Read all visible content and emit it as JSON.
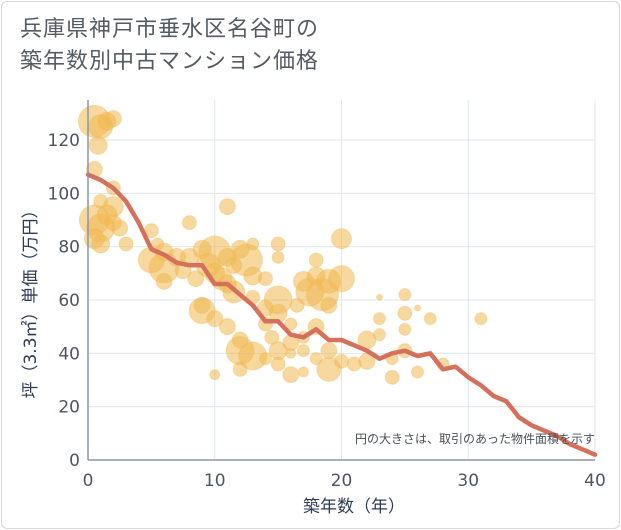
{
  "chart_data": {
    "type": "scatter",
    "title_lines": [
      "兵庫県神戸市垂水区名谷町の",
      "築年数別中古マンション価格"
    ],
    "xlabel": "築年数（年）",
    "ylabel": "坪（3.3㎡）単価（万円）",
    "note": "円の大きさは、取引のあった物件面積を示す",
    "xlim": [
      0,
      40
    ],
    "ylim": [
      0,
      135
    ],
    "x_ticks": [
      0,
      10,
      20,
      30,
      40
    ],
    "y_ticks": [
      0,
      20,
      40,
      60,
      80,
      100,
      120
    ],
    "grid": true,
    "colors": {
      "bubble": "#f0b850",
      "line": "#d4705c",
      "grid": "#dfe6ee",
      "axis": "#8c96a6"
    },
    "points": [
      {
        "x": 0.5,
        "y": 127,
        "s": 16
      },
      {
        "x": 1,
        "y": 125,
        "s": 12
      },
      {
        "x": 1.5,
        "y": 127,
        "s": 9
      },
      {
        "x": 2,
        "y": 128,
        "s": 8
      },
      {
        "x": 0.8,
        "y": 118,
        "s": 9
      },
      {
        "x": 0.5,
        "y": 109,
        "s": 8
      },
      {
        "x": 2,
        "y": 102,
        "s": 7
      },
      {
        "x": 1,
        "y": 97,
        "s": 7
      },
      {
        "x": 2,
        "y": 95,
        "s": 10
      },
      {
        "x": 0.5,
        "y": 90,
        "s": 15
      },
      {
        "x": 1,
        "y": 87,
        "s": 14
      },
      {
        "x": 1.5,
        "y": 92,
        "s": 10
      },
      {
        "x": 2,
        "y": 89,
        "s": 8
      },
      {
        "x": 0.5,
        "y": 83,
        "s": 10
      },
      {
        "x": 1,
        "y": 81,
        "s": 9
      },
      {
        "x": 2.5,
        "y": 87,
        "s": 8
      },
      {
        "x": 3,
        "y": 81,
        "s": 7
      },
      {
        "x": 5,
        "y": 86,
        "s": 7
      },
      {
        "x": 5.5,
        "y": 81,
        "s": 6
      },
      {
        "x": 6,
        "y": 78,
        "s": 9
      },
      {
        "x": 5,
        "y": 75,
        "s": 13
      },
      {
        "x": 6,
        "y": 72,
        "s": 15
      },
      {
        "x": 7,
        "y": 76,
        "s": 9
      },
      {
        "x": 6,
        "y": 67,
        "s": 8
      },
      {
        "x": 7.5,
        "y": 71,
        "s": 8
      },
      {
        "x": 8,
        "y": 89,
        "s": 7
      },
      {
        "x": 8,
        "y": 76,
        "s": 9
      },
      {
        "x": 8.5,
        "y": 68,
        "s": 8
      },
      {
        "x": 9,
        "y": 79,
        "s": 9
      },
      {
        "x": 9.5,
        "y": 73,
        "s": 12
      },
      {
        "x": 10,
        "y": 78,
        "s": 16
      },
      {
        "x": 10,
        "y": 70,
        "s": 10
      },
      {
        "x": 10.5,
        "y": 68,
        "s": 11
      },
      {
        "x": 11,
        "y": 95,
        "s": 8
      },
      {
        "x": 11,
        "y": 76,
        "s": 9
      },
      {
        "x": 11.5,
        "y": 73,
        "s": 8
      },
      {
        "x": 11,
        "y": 66,
        "s": 9
      },
      {
        "x": 11.5,
        "y": 63,
        "s": 11
      },
      {
        "x": 9,
        "y": 58,
        "s": 8
      },
      {
        "x": 9,
        "y": 56,
        "s": 13
      },
      {
        "x": 10,
        "y": 53,
        "s": 8
      },
      {
        "x": 11,
        "y": 50,
        "s": 8
      },
      {
        "x": 10,
        "y": 32,
        "s": 5
      },
      {
        "x": 12,
        "y": 79,
        "s": 9
      },
      {
        "x": 12.5,
        "y": 75,
        "s": 16
      },
      {
        "x": 13,
        "y": 81,
        "s": 6
      },
      {
        "x": 13,
        "y": 69,
        "s": 9
      },
      {
        "x": 13,
        "y": 61,
        "s": 7
      },
      {
        "x": 14,
        "y": 68,
        "s": 7
      },
      {
        "x": 14,
        "y": 57,
        "s": 8
      },
      {
        "x": 15,
        "y": 81,
        "s": 7
      },
      {
        "x": 15,
        "y": 76,
        "s": 6
      },
      {
        "x": 14,
        "y": 51,
        "s": 7
      },
      {
        "x": 14.5,
        "y": 46,
        "s": 7
      },
      {
        "x": 15,
        "y": 60,
        "s": 14
      },
      {
        "x": 15,
        "y": 55,
        "s": 9
      },
      {
        "x": 16,
        "y": 51,
        "s": 6
      },
      {
        "x": 16.5,
        "y": 58,
        "s": 7
      },
      {
        "x": 17,
        "y": 67,
        "s": 10
      },
      {
        "x": 17.5,
        "y": 63,
        "s": 14
      },
      {
        "x": 18,
        "y": 69,
        "s": 9
      },
      {
        "x": 18,
        "y": 75,
        "s": 7
      },
      {
        "x": 18.5,
        "y": 62,
        "s": 16
      },
      {
        "x": 19,
        "y": 67,
        "s": 12
      },
      {
        "x": 19,
        "y": 58,
        "s": 8
      },
      {
        "x": 20,
        "y": 68,
        "s": 13
      },
      {
        "x": 20,
        "y": 83,
        "s": 10
      },
      {
        "x": 18,
        "y": 50,
        "s": 8
      },
      {
        "x": 17,
        "y": 46,
        "s": 6
      },
      {
        "x": 16,
        "y": 44,
        "s": 8
      },
      {
        "x": 12,
        "y": 45,
        "s": 8
      },
      {
        "x": 12,
        "y": 41,
        "s": 14
      },
      {
        "x": 13,
        "y": 39,
        "s": 14
      },
      {
        "x": 12,
        "y": 34,
        "s": 7
      },
      {
        "x": 14,
        "y": 38,
        "s": 6
      },
      {
        "x": 15,
        "y": 41,
        "s": 9
      },
      {
        "x": 15,
        "y": 36,
        "s": 7
      },
      {
        "x": 16,
        "y": 40,
        "s": 5
      },
      {
        "x": 17,
        "y": 41,
        "s": 6
      },
      {
        "x": 16,
        "y": 32,
        "s": 8
      },
      {
        "x": 17,
        "y": 33,
        "s": 5
      },
      {
        "x": 18,
        "y": 38,
        "s": 6
      },
      {
        "x": 19,
        "y": 41,
        "s": 8
      },
      {
        "x": 19,
        "y": 34,
        "s": 12
      },
      {
        "x": 20,
        "y": 37,
        "s": 7
      },
      {
        "x": 21,
        "y": 36,
        "s": 7
      },
      {
        "x": 22,
        "y": 45,
        "s": 9
      },
      {
        "x": 22,
        "y": 37,
        "s": 8
      },
      {
        "x": 23,
        "y": 53,
        "s": 6
      },
      {
        "x": 23,
        "y": 61,
        "s": 3
      },
      {
        "x": 23,
        "y": 47,
        "s": 6
      },
      {
        "x": 24,
        "y": 38,
        "s": 6
      },
      {
        "x": 24,
        "y": 31,
        "s": 7
      },
      {
        "x": 25,
        "y": 62,
        "s": 6
      },
      {
        "x": 25,
        "y": 55,
        "s": 7
      },
      {
        "x": 25,
        "y": 49,
        "s": 6
      },
      {
        "x": 25,
        "y": 41,
        "s": 7
      },
      {
        "x": 26,
        "y": 57,
        "s": 3
      },
      {
        "x": 26,
        "y": 33,
        "s": 6
      },
      {
        "x": 27,
        "y": 53,
        "s": 6
      },
      {
        "x": 28,
        "y": 36,
        "s": 6
      },
      {
        "x": 31,
        "y": 53,
        "s": 6
      }
    ],
    "trend": {
      "x": [
        0,
        1,
        2,
        3,
        4,
        5,
        6,
        7,
        8,
        9,
        10,
        11,
        12,
        13,
        14,
        15,
        16,
        17,
        18,
        19,
        20,
        21,
        22,
        23,
        24,
        25,
        26,
        27,
        28,
        29,
        30,
        31,
        32,
        33,
        34,
        35,
        36,
        37,
        38,
        39,
        40
      ],
      "y": [
        107,
        105,
        102,
        97,
        89,
        79,
        77,
        74,
        73,
        73,
        66,
        66,
        62,
        58,
        52,
        52,
        47,
        46,
        49,
        45,
        45,
        43,
        41,
        38,
        40,
        41,
        39,
        40,
        34,
        35,
        31,
        28,
        24,
        22,
        16,
        13,
        11,
        9,
        6,
        4,
        2
      ]
    }
  }
}
